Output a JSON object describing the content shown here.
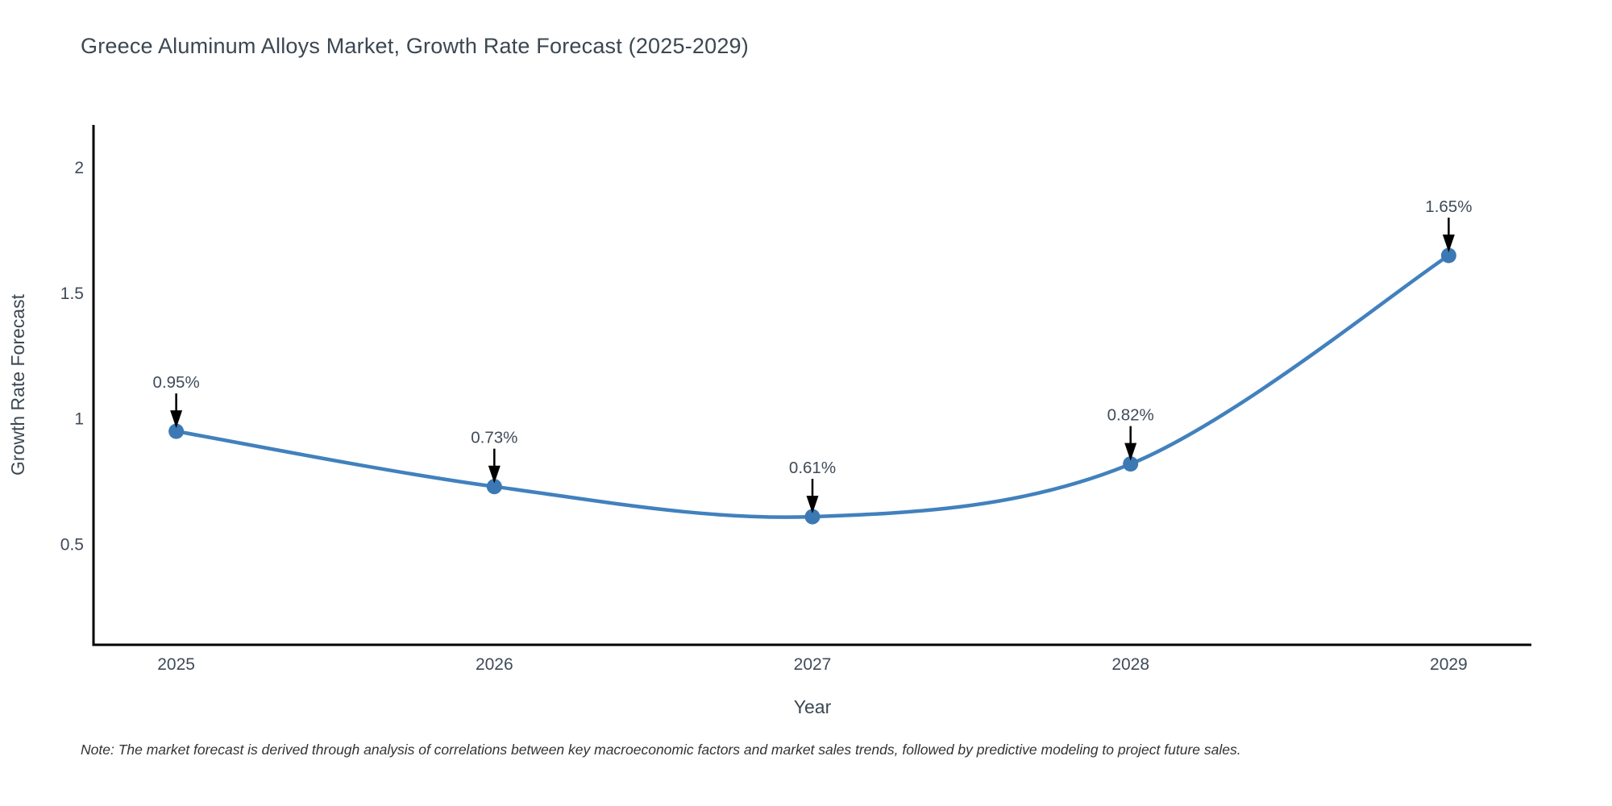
{
  "chart_data": {
    "type": "line",
    "title": "Greece Aluminum Alloys Market, Growth Rate Forecast (2025-2029)",
    "xlabel": "Year",
    "ylabel": "Growth Rate Forecast",
    "x": [
      2025,
      2026,
      2027,
      2028,
      2029
    ],
    "series": [
      {
        "name": "Growth Rate Forecast",
        "values": [
          0.95,
          0.73,
          0.61,
          0.82,
          1.65
        ]
      }
    ],
    "point_labels": [
      "0.95%",
      "0.73%",
      "0.61%",
      "0.82%",
      "1.65%"
    ],
    "x_tick_labels": [
      "2025",
      "2026",
      "2027",
      "2028",
      "2029"
    ],
    "y_ticks": [
      0.5,
      1,
      1.5,
      2
    ],
    "y_tick_labels": [
      "0.5",
      "1",
      "1.5",
      "2"
    ],
    "xlim": [
      2024.74,
      2029.26
    ],
    "ylim": [
      0.1,
      2.17
    ],
    "grid": false,
    "legend_position": "none",
    "line_shape": "spline",
    "colors": {
      "line": "#4181bd",
      "marker": "#3c79b4",
      "axis": "#000000",
      "tick_text": "#3f4b58",
      "axis_title_text": "#3b4752",
      "annotation_text": "#3f4b58",
      "annotation_arrow": "#000000"
    }
  },
  "note": "Note: The market forecast is derived through analysis of correlations between key macroeconomic factors and market sales trends, followed by predictive modeling to project future sales."
}
